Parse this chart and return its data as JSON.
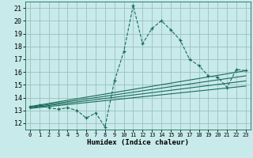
{
  "title": "",
  "xlabel": "Humidex (Indice chaleur)",
  "ylabel": "",
  "bg_color": "#c8eaea",
  "grid_color": "#9bbfbf",
  "line_color": "#1a6b5a",
  "xlim": [
    -0.5,
    23.5
  ],
  "ylim": [
    11.5,
    21.5
  ],
  "xticks": [
    0,
    1,
    2,
    3,
    4,
    5,
    6,
    7,
    8,
    9,
    10,
    11,
    12,
    13,
    14,
    15,
    16,
    17,
    18,
    19,
    20,
    21,
    22,
    23
  ],
  "yticks": [
    12,
    13,
    14,
    15,
    16,
    17,
    18,
    19,
    20,
    21
  ],
  "main_x": [
    0,
    1,
    2,
    3,
    4,
    5,
    6,
    7,
    8,
    9,
    10,
    11,
    12,
    13,
    14,
    15,
    16,
    17,
    18,
    19,
    20,
    21,
    22,
    23
  ],
  "main_y": [
    13.3,
    13.4,
    13.2,
    13.1,
    13.2,
    13.0,
    12.4,
    12.8,
    11.7,
    15.3,
    17.6,
    21.2,
    18.2,
    19.4,
    20.0,
    19.3,
    18.5,
    17.0,
    16.5,
    15.7,
    15.6,
    14.8,
    16.2,
    16.1
  ],
  "reg_lines": [
    {
      "x0": 0,
      "y0": 13.3,
      "x1": 23,
      "y1": 16.1
    },
    {
      "x0": 0,
      "y0": 13.25,
      "x1": 23,
      "y1": 15.7
    },
    {
      "x0": 0,
      "y0": 13.2,
      "x1": 23,
      "y1": 15.3
    },
    {
      "x0": 0,
      "y0": 13.15,
      "x1": 23,
      "y1": 14.9
    }
  ]
}
